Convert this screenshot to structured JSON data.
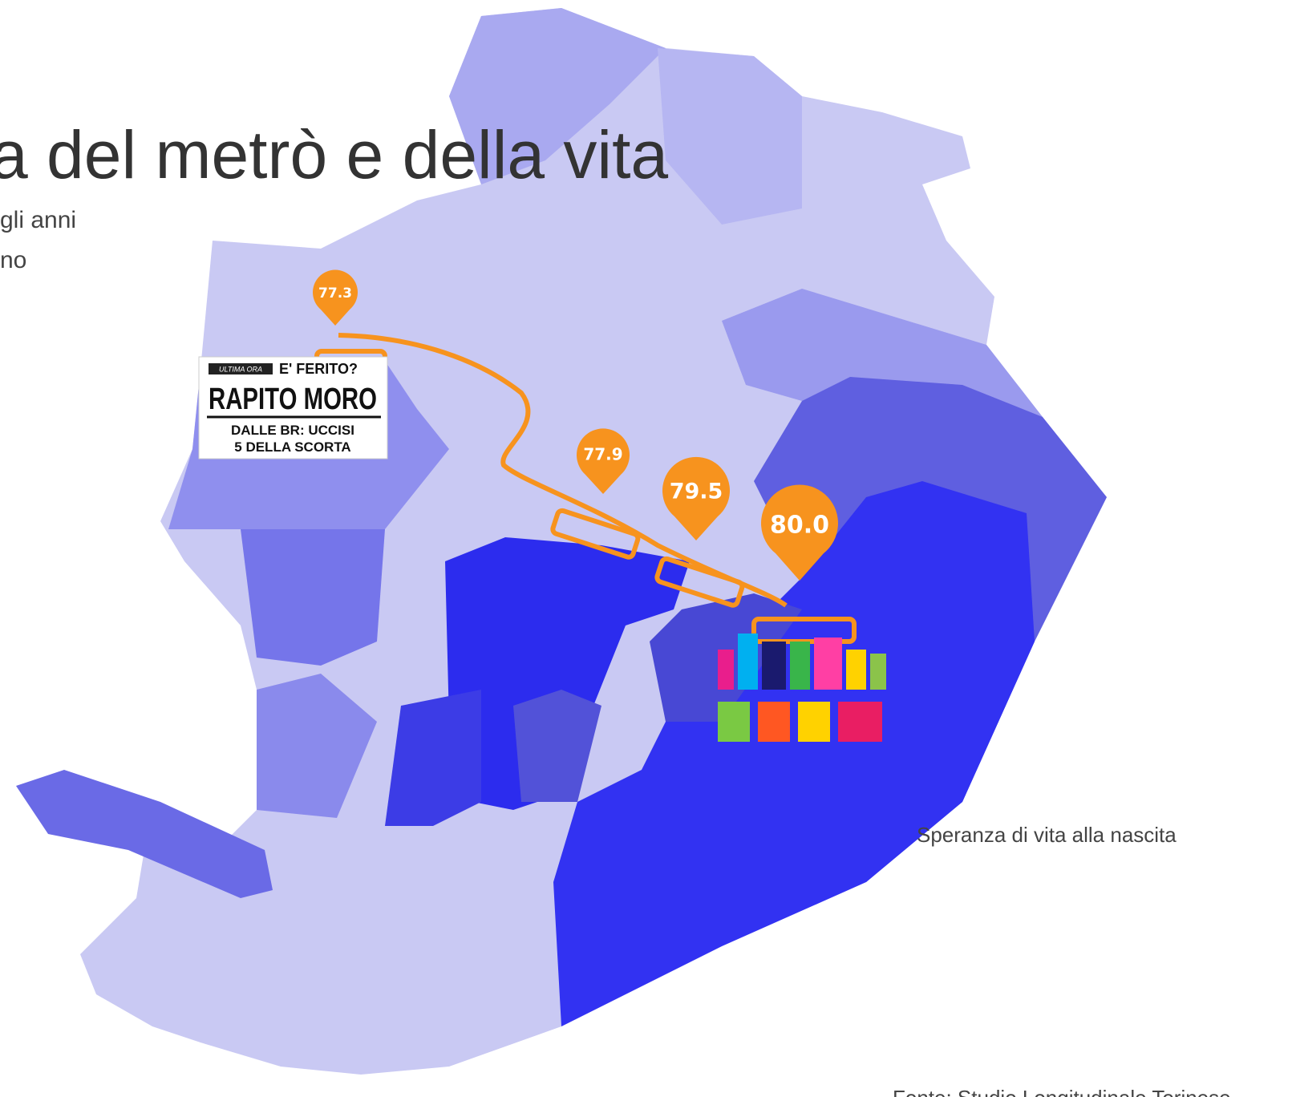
{
  "header": {
    "title": "a del metrò e della vita",
    "subtitle": [
      "gli anni",
      "no"
    ]
  },
  "markers": [
    {
      "label": "77.3"
    },
    {
      "label": "77.9"
    },
    {
      "label": "79.5"
    },
    {
      "label": "80.0"
    }
  ],
  "newspaper": {
    "kicker": "ULTIMA ORA",
    "question": "E' FERITO?",
    "headline": "RAPITO MORO",
    "line1": "DALLE BR: UCCISI",
    "line2": "5 DELLA SCORTA"
  },
  "legend_title": "Speranza di vita alla nascita",
  "source": "Fonte: Studio Longitudinale Torinese"
}
